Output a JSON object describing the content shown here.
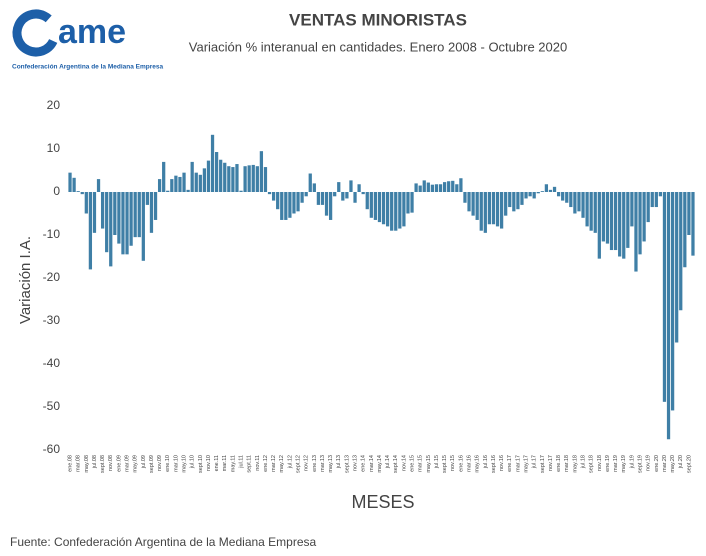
{
  "chart_data": {
    "type": "bar",
    "logo_text": "ame",
    "logo_subtitle": "Confederación Argentina de la Mediana Empresa",
    "title": "VENTAS MINORISTAS",
    "subtitle": "Variación % interanual en cantidades. Enero 2008 - Octubre 2020",
    "y_label": "Variación I.A.",
    "x_label": "MESES",
    "source": "Fuente: Confederación Argentina de la Mediana Empresa",
    "color": "#3f7fa6",
    "grid": false,
    "ylim": [
      -60,
      20
    ],
    "yticks": [
      20,
      10,
      0,
      -10,
      -20,
      -30,
      -40,
      -50,
      -60
    ],
    "categories": [
      "ene.08",
      null,
      "mar.08",
      null,
      "may.08",
      null,
      "jul.08",
      null,
      "sept.08",
      null,
      "nov.08",
      null,
      "ene.09",
      null,
      "mar.09",
      null,
      "may.09",
      null,
      "jul.09",
      null,
      "sept.09",
      null,
      "nov.09",
      null,
      "ene.10",
      null,
      "mar.10",
      null,
      "may.10",
      null,
      "jul.10",
      null,
      "sept.10",
      null,
      "nov.10",
      null,
      "ene.11",
      null,
      "mar.11",
      null,
      "may.11",
      null,
      "jul.11",
      null,
      "sept.11",
      null,
      "nov.11",
      null,
      "ene.12",
      null,
      "mar.12",
      null,
      "may.12",
      null,
      "jul.12",
      null,
      "sept.12",
      null,
      "nov.12",
      null,
      "ene.13",
      null,
      "mar.13",
      null,
      "may.13",
      null,
      "jul.13",
      null,
      "sept.13",
      null,
      "nov.13",
      null,
      "ene.14",
      null,
      "mar.14",
      null,
      "may.14",
      null,
      "jul.14",
      null,
      "sept.14",
      null,
      "nov.14",
      null,
      "ene.15",
      null,
      "mar.15",
      null,
      "may.15",
      null,
      "jul.15",
      null,
      "sept.15",
      null,
      "nov.15",
      null,
      "ene.16",
      null,
      "mar.16",
      null,
      "may.16",
      null,
      "jul.16",
      null,
      "sept.16",
      null,
      "nov.16",
      null,
      "ene.17",
      null,
      "mar.17",
      null,
      "may.17",
      null,
      "jul.17",
      null,
      "sept.17",
      null,
      "nov.17",
      null,
      "ene.18",
      null,
      "mar.18",
      null,
      "may.18",
      null,
      "jul.18",
      null,
      "sept.18",
      null,
      "nov.18",
      null,
      "ene.19",
      null,
      "mar.19",
      null,
      "may.19",
      null,
      "jul.19",
      null,
      "sept.19",
      null,
      "nov.19",
      null,
      "ene.20",
      null,
      "mar.20",
      null,
      "may.20",
      null,
      "jul.20",
      null,
      "sept.20",
      null
    ],
    "values": [
      4.5,
      3.3,
      0.2,
      -0.5,
      -5,
      -18,
      -9.5,
      3,
      -8.5,
      -14,
      -17.3,
      -10,
      -12,
      -14.5,
      -14.5,
      -12.5,
      -10.5,
      -10.5,
      -16,
      -3,
      -9.5,
      -6.5,
      3,
      7,
      0.3,
      3,
      3.8,
      3.5,
      4.5,
      0.5,
      7,
      4.5,
      4,
      5.5,
      7.3,
      13.3,
      9.3,
      7.5,
      6.8,
      6,
      5.8,
      6.5,
      0.3,
      6,
      6.2,
      6.3,
      6,
      9.5,
      5.8,
      -0.5,
      -2,
      -4,
      -6.5,
      -6.5,
      -6,
      -5,
      -4.5,
      -2.5,
      -1,
      4.3,
      2,
      -3,
      -3,
      -5.5,
      -6.5,
      -1,
      2.3,
      -2,
      -1.5,
      2.7,
      -2.5,
      1.8,
      -0.5,
      -4,
      -6,
      -6.5,
      -7,
      -7.5,
      -8,
      -9,
      -9,
      -8.5,
      -8,
      -5,
      -4.8,
      2,
      1.5,
      2.7,
      2.2,
      1.7,
      1.8,
      1.8,
      2.3,
      2.5,
      2.6,
      1.8,
      3.2,
      -2.5,
      -4.5,
      -5.5,
      -6.5,
      -9,
      -9.5,
      -7.5,
      -7.5,
      -8,
      -8.5,
      -5.5,
      -3.5,
      -4.5,
      -4,
      -3,
      -1.5,
      -1,
      -1.5,
      -0.3,
      0.2,
      1.8,
      0.5,
      1.2,
      -1,
      -2,
      -2.5,
      -3.5,
      -5,
      -4.5,
      -6,
      -8,
      -9,
      -9.5,
      -15.5,
      -11.5,
      -12,
      -13.5,
      -13.5,
      -15,
      -15.5,
      -13,
      -8,
      -18.5,
      -14.5,
      -11.5,
      -7,
      -3.5,
      -3.5,
      -1,
      -48.8,
      -57.5,
      -50.8,
      -35,
      -27.5,
      -17.5,
      -10,
      -14.8
    ]
  }
}
